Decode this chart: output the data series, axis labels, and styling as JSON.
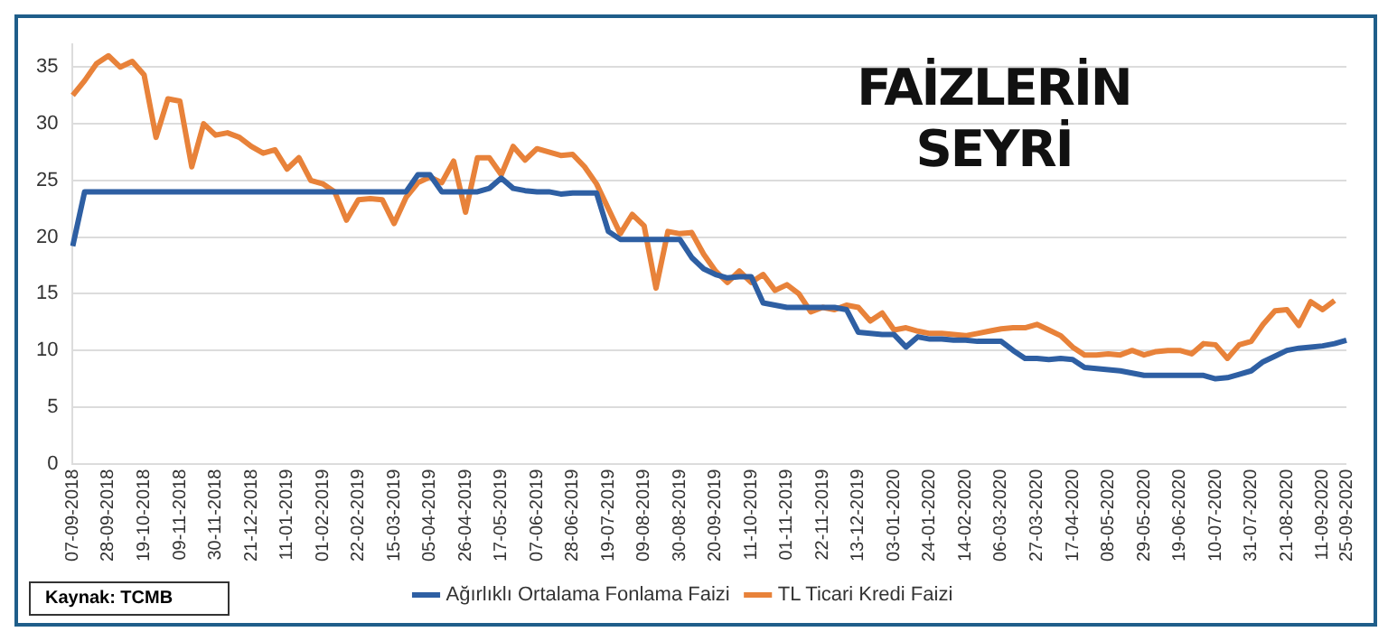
{
  "chart_data": {
    "type": "line",
    "title": "FAİZLERİN SEYRİ",
    "categories": [
      "07-09-2018",
      null,
      null,
      "28-09-2018",
      null,
      null,
      "19-10-2018",
      null,
      null,
      "09-11-2018",
      null,
      null,
      "30-11-2018",
      null,
      null,
      "21-12-2018",
      null,
      null,
      "11-01-2019",
      null,
      null,
      "01-02-2019",
      null,
      null,
      "22-02-2019",
      null,
      null,
      "15-03-2019",
      null,
      null,
      "05-04-2019",
      null,
      null,
      "26-04-2019",
      null,
      null,
      "17-05-2019",
      null,
      null,
      "07-06-2019",
      null,
      null,
      "28-06-2019",
      null,
      null,
      "19-07-2019",
      null,
      null,
      "09-08-2019",
      null,
      null,
      "30-08-2019",
      null,
      null,
      "20-09-2019",
      null,
      null,
      "11-10-2019",
      null,
      null,
      "01-11-2019",
      null,
      null,
      "22-11-2019",
      null,
      null,
      "13-12-2019",
      null,
      null,
      "03-01-2020",
      null,
      null,
      "24-01-2020",
      null,
      null,
      "14-02-2020",
      null,
      null,
      "06-03-2020",
      null,
      null,
      "27-03-2020",
      null,
      null,
      "17-04-2020",
      null,
      null,
      "08-05-2020",
      null,
      null,
      "29-05-2020",
      null,
      null,
      "19-06-2020",
      null,
      null,
      "10-07-2020",
      null,
      null,
      "31-07-2020",
      null,
      null,
      "21-08-2020",
      null,
      null,
      "11-09-2020",
      null,
      "25-09-2020"
    ],
    "series": [
      {
        "name": "Ağırlıklı Ortalama Fonlama Faizi",
        "color": "#2e5fa3",
        "values": [
          19.2,
          24,
          24,
          24,
          24,
          24,
          24,
          24,
          24,
          24,
          24,
          24,
          24,
          24,
          24,
          24,
          24,
          24,
          24,
          24,
          24,
          24,
          24,
          24,
          24,
          24,
          24,
          24,
          24,
          25.5,
          25.5,
          24,
          24,
          24,
          24,
          24.3,
          25.2,
          24.3,
          24.1,
          24,
          24,
          23.8,
          23.9,
          23.9,
          23.9,
          20.5,
          19.8,
          19.8,
          19.8,
          19.8,
          19.8,
          19.8,
          18.2,
          17.2,
          16.7,
          16.4,
          16.5,
          16.5,
          14.2,
          14,
          13.8,
          13.8,
          13.8,
          13.8,
          13.8,
          13.6,
          11.6,
          11.5,
          11.4,
          11.4,
          10.3,
          11.2,
          11,
          11,
          10.9,
          10.9,
          10.8,
          10.8,
          10.8,
          10,
          9.3,
          9.3,
          9.2,
          9.3,
          9.2,
          8.5,
          8.4,
          8.3,
          8.2,
          8,
          7.8,
          7.8,
          7.8,
          7.8,
          7.8,
          7.8,
          7.5,
          7.6,
          7.9,
          8.2,
          9,
          9.5,
          10,
          10.2,
          10.3,
          10.4,
          10.6,
          10.9
        ]
      },
      {
        "name": "TL Ticari Kredi Faizi",
        "color": "#e8823a",
        "values": [
          32.5,
          33.8,
          35.3,
          36,
          35,
          35.5,
          34.3,
          28.8,
          32.2,
          32,
          26.2,
          30,
          29,
          29.2,
          28.8,
          28,
          27.4,
          27.7,
          26,
          27,
          25,
          24.7,
          24,
          21.5,
          23.3,
          23.4,
          23.3,
          21.2,
          23.5,
          24.8,
          25.3,
          24.8,
          26.7,
          22.2,
          27,
          27,
          25.5,
          28,
          26.8,
          27.8,
          27.5,
          27.2,
          27.3,
          26.2,
          24.7,
          22.5,
          20.3,
          22,
          21,
          15.5,
          20.5,
          20.3,
          20.4,
          18.5,
          17,
          16,
          17,
          16,
          16.7,
          15.3,
          15.8,
          15,
          13.4,
          13.8,
          13.6,
          14,
          13.8,
          12.6,
          13.3,
          11.8,
          12,
          11.7,
          11.5,
          11.5,
          11.4,
          11.3,
          11.5,
          11.7,
          11.9,
          12,
          12,
          12.3,
          11.8,
          11.3,
          10.3,
          9.6,
          9.6,
          9.7,
          9.6,
          10,
          9.6,
          9.9,
          10,
          10,
          9.7,
          10.6,
          10.5,
          9.3,
          10.5,
          10.8,
          12.3,
          13.5,
          13.6,
          12.2,
          14.3,
          13.6,
          14.4,
          null
        ]
      }
    ],
    "ylim": [
      0,
      37
    ],
    "yticks": [
      0,
      5,
      10,
      15,
      20,
      25,
      30,
      35
    ],
    "grid": "y",
    "legend": "bottom",
    "marker": "none",
    "annotations": [
      "Kaynak: TCMB"
    ]
  }
}
